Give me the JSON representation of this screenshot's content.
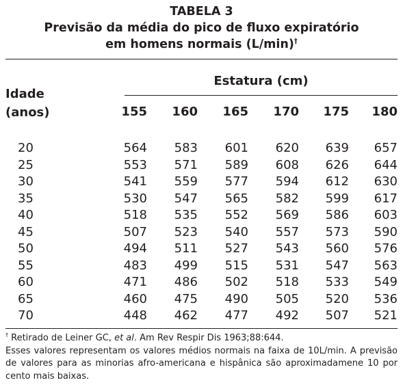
{
  "title": {
    "line1": "TABELA 3",
    "line2": "Previsão da média do pico de fluxo expiratório",
    "line3": "em homens normais (L/min)",
    "line3_mark": "†"
  },
  "stub_header": {
    "line1": "Idade",
    "line2": "(anos)"
  },
  "spanner_header": "Estatura (cm)",
  "columns": [
    "155",
    "160",
    "165",
    "170",
    "175",
    "180"
  ],
  "rows": [
    {
      "age": "20",
      "values": [
        "564",
        "583",
        "601",
        "620",
        "639",
        "657"
      ]
    },
    {
      "age": "25",
      "values": [
        "553",
        "571",
        "589",
        "608",
        "626",
        "644"
      ]
    },
    {
      "age": "30",
      "values": [
        "541",
        "559",
        "577",
        "594",
        "612",
        "630"
      ]
    },
    {
      "age": "35",
      "values": [
        "530",
        "547",
        "565",
        "582",
        "599",
        "617"
      ]
    },
    {
      "age": "40",
      "values": [
        "518",
        "535",
        "552",
        "569",
        "586",
        "603"
      ]
    },
    {
      "age": "45",
      "values": [
        "507",
        "523",
        "540",
        "557",
        "573",
        "590"
      ]
    },
    {
      "age": "50",
      "values": [
        "494",
        "511",
        "527",
        "543",
        "560",
        "576"
      ]
    },
    {
      "age": "55",
      "values": [
        "483",
        "499",
        "515",
        "531",
        "547",
        "563"
      ]
    },
    {
      "age": "60",
      "values": [
        "471",
        "486",
        "502",
        "518",
        "533",
        "549"
      ]
    },
    {
      "age": "65",
      "values": [
        "460",
        "475",
        "490",
        "505",
        "520",
        "536"
      ]
    },
    {
      "age": "70",
      "values": [
        "448",
        "462",
        "477",
        "492",
        "507",
        "521"
      ]
    }
  ],
  "footnotes": {
    "mark": "†",
    "source_prefix": " Retirado de Leiner GC, ",
    "source_italic": "et al",
    "source_suffix": ". Am Rev Respir Dis 1963;88:644.",
    "note": "Esses valores representam os valores médios normais na faixa de 10L/min. A previsão de valores para as minorias afro-americana e hispânica são aproximadamene 10 por cento mais baixas."
  }
}
